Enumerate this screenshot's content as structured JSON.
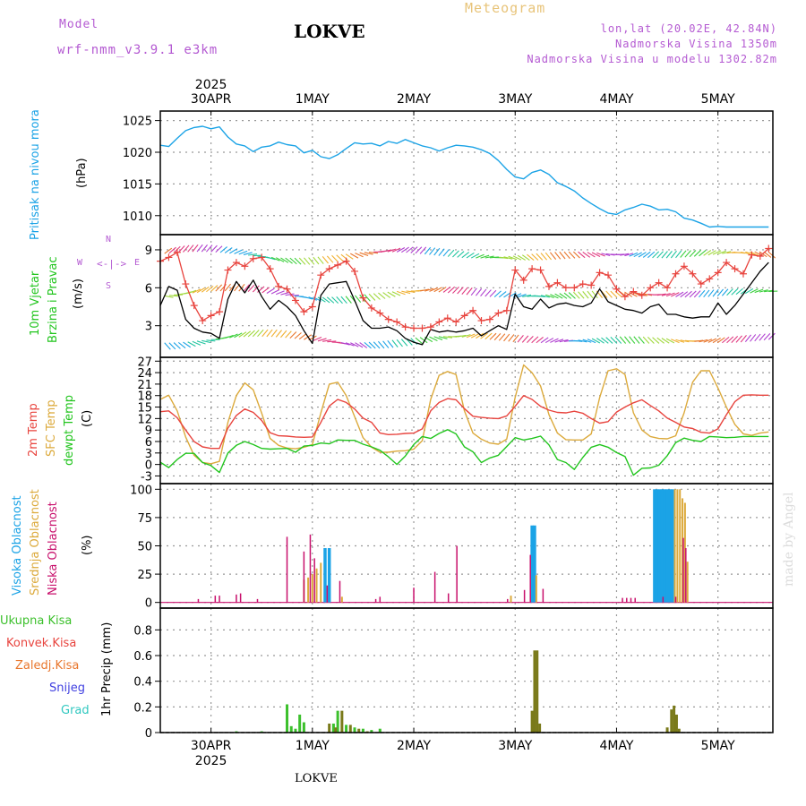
{
  "header": {
    "model_label": "Model",
    "model_name": "wrf-nmm_v3.9.1 e3km",
    "station": "LOKVE",
    "meteogram": "Meteogram",
    "lonlat": "lon,lat (20.02E, 42.84N)",
    "elevation": "Nadmorska Visina 1350m",
    "model_elevation": "Nadmorska Visina u modelu 1302.82m",
    "footer": "LOKVE",
    "watermark": "made by Angel"
  },
  "time_axis": {
    "year": "2025",
    "days": [
      "30APR",
      "1MAY",
      "2MAY",
      "3MAY",
      "4MAY",
      "5MAY"
    ],
    "hours_from_start": [
      0,
      24,
      48,
      72,
      96,
      120
    ],
    "range_hours": [
      -12,
      133
    ]
  },
  "colors": {
    "pressure": "#1ba3e6",
    "t2m": "#e8443e",
    "sfc": "#dcaa3c",
    "dewpt": "#22c51e",
    "black": "#000000",
    "high_cloud": "#1ba3e6",
    "mid_cloud": "#dcaa3c",
    "low_cloud": "#c8106c",
    "total_precip": "#3cc02c",
    "conv_precip": "#e8443e",
    "frozen": "#e8762c",
    "snow": "#4040e0",
    "grad": "#30c8c0",
    "model_purple": "#b45ad2"
  },
  "chart_data": [
    {
      "id": "pressure",
      "type": "line",
      "title": "Pritisak na nivou mora",
      "ylabel": "(hPa)",
      "ylim": [
        1007,
        1026.5
      ],
      "yticks": [
        1010,
        1015,
        1020,
        1025
      ],
      "x": [
        -12,
        -10,
        -8,
        -6,
        -4,
        -2,
        0,
        2,
        4,
        6,
        8,
        10,
        12,
        14,
        16,
        18,
        20,
        22,
        24,
        26,
        28,
        30,
        32,
        34,
        36,
        38,
        40,
        42,
        44,
        46,
        48,
        50,
        52,
        54,
        56,
        58,
        60,
        62,
        64,
        66,
        68,
        70,
        72,
        74,
        76,
        78,
        80,
        82,
        84,
        86,
        88,
        90,
        92,
        94,
        96,
        98,
        100,
        102,
        104,
        106,
        108,
        110,
        112,
        114,
        116,
        118,
        120,
        122,
        124,
        126,
        128,
        130,
        132
      ],
      "series": [
        {
          "name": "Pritisak",
          "values": [
            1021.1,
            1020.9,
            1022.2,
            1023.4,
            1023.9,
            1024.1,
            1023.7,
            1024.0,
            1022.4,
            1021.3,
            1021.0,
            1020.1,
            1020.8,
            1021.0,
            1021.6,
            1021.2,
            1021.0,
            1019.9,
            1020.3,
            1019.3,
            1019.0,
            1019.6,
            1020.6,
            1021.5,
            1021.3,
            1021.4,
            1021.0,
            1021.7,
            1021.4,
            1022.0,
            1021.5,
            1021.0,
            1020.7,
            1020.2,
            1020.7,
            1021.1,
            1021.0,
            1020.8,
            1020.4,
            1019.8,
            1018.7,
            1017.3,
            1016.1,
            1015.8,
            1016.8,
            1017.2,
            1016.5,
            1015.2,
            1014.6,
            1013.9,
            1012.8,
            1011.9,
            1011.1,
            1010.4,
            1010.2,
            1010.9,
            1011.3,
            1011.8,
            1011.5,
            1010.9,
            1011.0,
            1010.6,
            1009.6,
            1009.3,
            1008.8,
            1008.2,
            1008.3,
            1008.2,
            1008.2,
            1008.2,
            1008.2,
            1008.2,
            1008.2
          ]
        }
      ]
    },
    {
      "id": "wind",
      "type": "line",
      "title": "10m Vjetar",
      "subtitle": "Brzina i Pravac",
      "ylabel": "(m/s)",
      "compass": {
        "n": "N",
        "w": "W",
        "e": "E",
        "s": "S"
      },
      "ylim": [
        0.5,
        10.2
      ],
      "yticks": [
        3,
        6,
        9
      ],
      "x": [
        -12,
        -10,
        -8,
        -6,
        -4,
        -2,
        0,
        2,
        4,
        6,
        8,
        10,
        12,
        14,
        16,
        18,
        20,
        22,
        24,
        26,
        28,
        30,
        32,
        34,
        36,
        38,
        40,
        42,
        44,
        46,
        48,
        50,
        52,
        54,
        56,
        58,
        60,
        62,
        64,
        66,
        68,
        70,
        72,
        74,
        76,
        78,
        80,
        82,
        84,
        86,
        88,
        90,
        92,
        94,
        96,
        98,
        100,
        102,
        104,
        106,
        108,
        110,
        112,
        114,
        116,
        118,
        120,
        122,
        124,
        126,
        128,
        130,
        132
      ],
      "series": [
        {
          "name": "Brzina",
          "values": [
            4.6,
            6.1,
            5.8,
            3.5,
            2.8,
            2.5,
            2.4,
            2.0,
            5.1,
            6.5,
            5.6,
            6.6,
            5.3,
            4.3,
            5.0,
            4.5,
            3.8,
            2.6,
            1.6,
            5.4,
            6.3,
            6.4,
            6.5,
            5.0,
            3.4,
            2.8,
            2.8,
            2.9,
            2.6,
            2.0,
            1.7,
            1.5,
            2.7,
            2.5,
            2.6,
            2.5,
            2.6,
            2.8,
            2.2,
            2.6,
            3.0,
            2.7,
            5.5,
            4.5,
            4.3,
            5.1,
            4.4,
            4.7,
            4.8,
            4.6,
            4.5,
            4.8,
            5.9,
            4.9,
            4.6,
            4.3,
            4.2,
            4.0,
            4.5,
            4.7,
            3.9,
            3.9,
            3.7,
            3.6,
            3.7,
            3.7,
            4.8,
            3.9,
            4.6,
            5.5,
            6.4,
            7.3,
            8.0
          ]
        },
        {
          "name": "Udari",
          "values": [
            8.1,
            8.4,
            8.8,
            6.3,
            4.6,
            3.4,
            3.8,
            4.1,
            7.4,
            8.0,
            7.7,
            8.3,
            8.4,
            7.5,
            6.1,
            5.9,
            5.0,
            4.1,
            4.5,
            7.0,
            7.5,
            7.8,
            8.1,
            7.3,
            5.2,
            4.4,
            4.0,
            3.5,
            3.3,
            2.9,
            2.8,
            2.8,
            2.9,
            3.3,
            3.6,
            3.3,
            3.8,
            4.2,
            3.4,
            3.5,
            4.0,
            4.2,
            7.4,
            6.6,
            7.5,
            7.4,
            6.1,
            6.4,
            6.0,
            6.0,
            6.3,
            6.2,
            7.2,
            7.0,
            5.9,
            5.3,
            5.7,
            5.4,
            6.0,
            6.4,
            6.0,
            7.1,
            7.7,
            7.1,
            6.3,
            6.7,
            7.2,
            8.0,
            7.5,
            7.1,
            8.6,
            8.5,
            9.1
          ]
        }
      ]
    },
    {
      "id": "temperature",
      "type": "line",
      "title": "2m Temp",
      "title2": "SFC Temp",
      "title3": "dewpt Temp",
      "ylabel": "(C)",
      "ylim": [
        -5,
        28
      ],
      "yticks": [
        -3,
        0,
        3,
        6,
        9,
        12,
        15,
        18,
        21,
        24,
        27
      ],
      "x": [
        -12,
        -10,
        -8,
        -6,
        -4,
        -2,
        0,
        2,
        4,
        6,
        8,
        10,
        12,
        14,
        16,
        18,
        20,
        22,
        24,
        26,
        28,
        30,
        32,
        34,
        36,
        38,
        40,
        42,
        44,
        46,
        48,
        50,
        52,
        54,
        56,
        58,
        60,
        62,
        64,
        66,
        68,
        70,
        72,
        74,
        76,
        78,
        80,
        82,
        84,
        86,
        88,
        90,
        92,
        94,
        96,
        98,
        100,
        102,
        104,
        106,
        108,
        110,
        112,
        114,
        116,
        118,
        120,
        122,
        124,
        126,
        128,
        130,
        132
      ],
      "series": [
        {
          "name": "2m Temp",
          "values": [
            13.8,
            14.0,
            12.2,
            9.0,
            6.0,
            4.6,
            4.2,
            4.2,
            9.5,
            12.8,
            14.5,
            13.6,
            11.5,
            8.3,
            7.5,
            7.4,
            7.2,
            7.1,
            7.2,
            11.0,
            15.3,
            17.0,
            16.2,
            14.5,
            12.1,
            11.0,
            8.2,
            7.8,
            7.9,
            8.1,
            8.2,
            9.3,
            14.0,
            16.2,
            17.2,
            16.9,
            14.6,
            12.6,
            12.3,
            12.1,
            12.0,
            12.7,
            15.2,
            18.0,
            17.0,
            15.2,
            14.2,
            13.6,
            13.5,
            13.9,
            13.4,
            12.0,
            10.8,
            11.2,
            13.7,
            15.0,
            16.1,
            16.9,
            15.4,
            14.0,
            12.1,
            11.0,
            9.8,
            9.4,
            8.4,
            8.2,
            9.3,
            13.0,
            16.4,
            18.1,
            18.2,
            18.1,
            18.1
          ]
        },
        {
          "name": "SFC Temp",
          "values": [
            17.0,
            18.1,
            14.0,
            7.2,
            2.4,
            0.5,
            0.2,
            0.8,
            11.0,
            18.0,
            21.3,
            19.5,
            13.4,
            6.8,
            5.0,
            4.3,
            4.1,
            4.5,
            5.2,
            13.5,
            21.0,
            21.5,
            18.0,
            12.5,
            7.0,
            4.5,
            3.2,
            3.2,
            3.5,
            3.6,
            4.0,
            6.2,
            17.0,
            23.3,
            24.3,
            23.5,
            14.0,
            8.2,
            6.6,
            5.6,
            5.3,
            6.6,
            17.5,
            26.0,
            24.0,
            20.5,
            13.0,
            8.2,
            6.5,
            6.4,
            6.4,
            8.0,
            17.5,
            24.5,
            25.0,
            23.5,
            13.5,
            9.0,
            7.3,
            6.8,
            6.7,
            7.5,
            13.5,
            21.5,
            24.5,
            24.5,
            20.0,
            15.0,
            10.5,
            8.0,
            7.6,
            8.2,
            8.5
          ]
        },
        {
          "name": "dewpt Temp",
          "values": [
            0.6,
            -0.8,
            1.3,
            2.9,
            2.9,
            0.5,
            -0.3,
            -2.1,
            3.0,
            5.0,
            6.0,
            5.2,
            4.2,
            4.0,
            4.1,
            4.2,
            3.2,
            4.8,
            5.0,
            5.6,
            5.4,
            6.4,
            6.3,
            6.3,
            5.3,
            4.6,
            3.7,
            2.0,
            0.0,
            2.2,
            5.2,
            7.3,
            6.8,
            8.1,
            9.1,
            8.0,
            4.6,
            3.3,
            0.5,
            1.7,
            2.4,
            4.7,
            7.0,
            6.4,
            6.8,
            7.4,
            5.1,
            1.3,
            0.5,
            -1.3,
            1.8,
            4.5,
            5.2,
            4.5,
            3.1,
            2.1,
            -2.8,
            -1.0,
            -0.9,
            -0.2,
            2.3,
            5.7,
            6.9,
            6.3,
            6.0,
            7.3,
            7.2,
            7.0,
            7.1,
            7.3,
            7.3,
            7.3,
            7.3
          ]
        }
      ]
    },
    {
      "id": "clouds",
      "type": "bar",
      "title": "Visoka Oblacnost",
      "title2": "Srednja Oblacnost",
      "title3": "Niska Oblacnost",
      "ylabel": "(%)",
      "ylim": [
        -5,
        105
      ],
      "yticks": [
        0,
        25,
        50,
        75,
        100
      ],
      "series": [
        {
          "name": "Visoka",
          "x": [
            27,
            28,
            76,
            76.6,
            105,
            105.6,
            106.2,
            106.8,
            107.4,
            108,
            108.6,
            109.2
          ],
          "values": [
            48,
            48,
            68,
            68,
            100,
            100,
            100,
            100,
            100,
            100,
            100,
            100
          ]
        },
        {
          "name": "Srednja",
          "x": [
            22,
            23,
            24,
            25,
            26,
            31,
            71,
            77,
            109.8,
            110.4,
            111,
            111.6,
            112.2,
            112.8
          ],
          "values": [
            20,
            22,
            25,
            30,
            35,
            5,
            6,
            24,
            100,
            100,
            100,
            92,
            88,
            36
          ]
        },
        {
          "name": "Niska",
          "x": [
            -3,
            1,
            2,
            6,
            7,
            11,
            18,
            22,
            23.5,
            24.5,
            27.5,
            30.5,
            39,
            40,
            48,
            53,
            56.2,
            58.2,
            70.2,
            74.2,
            75.6,
            78.6,
            97.4,
            98.4,
            99.4,
            100.4,
            107,
            110,
            111.8,
            112.4
          ],
          "values": [
            3,
            6,
            6,
            7,
            8,
            3,
            58,
            45,
            60,
            39,
            15,
            19,
            3,
            5,
            13,
            27,
            8,
            50,
            3,
            11,
            42,
            12,
            4,
            4,
            4,
            4,
            5,
            5,
            57,
            48
          ]
        }
      ]
    },
    {
      "id": "precip",
      "type": "bar",
      "title": "1hr Precip (mm)",
      "legend": [
        "Ukupna Kisa",
        "Konvek.Kisa",
        "Zaledj.Kisa",
        "Snijeg",
        "Grad"
      ],
      "ylim": [
        0,
        0.97
      ],
      "yticks": [
        0,
        0.2,
        0.4,
        0.6,
        0.8
      ],
      "series": [
        {
          "name": "Ukupna Kisa",
          "x": [
            6,
            12,
            18,
            19,
            20,
            21,
            22,
            29,
            30,
            32,
            34,
            36,
            38,
            40
          ],
          "values": [
            0.01,
            0.01,
            0.22,
            0.05,
            0.03,
            0.14,
            0.08,
            0.07,
            0.17,
            0.06,
            0.04,
            0.03,
            0.02,
            0.03
          ]
        },
        {
          "name": "Zaledj.Kisa",
          "x": [
            28,
            29.5,
            31,
            33,
            35,
            37,
            76,
            76.6,
            77.2,
            77.8,
            108,
            109,
            109.6,
            110.2,
            110.8
          ],
          "values": [
            0.07,
            0.04,
            0.17,
            0.06,
            0.03,
            0.01,
            0.17,
            0.64,
            0.64,
            0.07,
            0.04,
            0.18,
            0.21,
            0.14,
            0.03
          ]
        }
      ]
    }
  ]
}
